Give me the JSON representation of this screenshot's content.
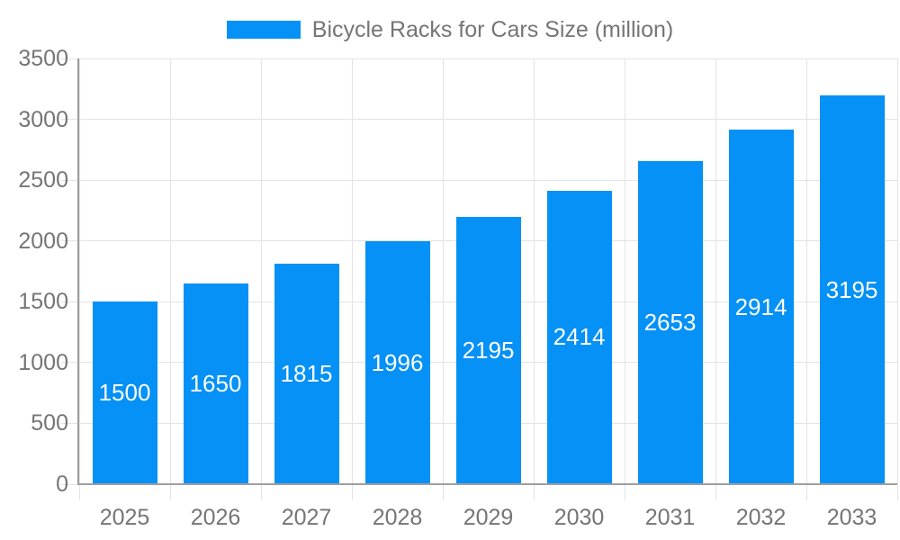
{
  "chart_data": {
    "type": "bar",
    "title": "Bicycle Racks for Cars Size (million)",
    "categories": [
      "2025",
      "2026",
      "2027",
      "2028",
      "2029",
      "2030",
      "2031",
      "2032",
      "2033"
    ],
    "values": [
      1500,
      1650,
      1815,
      1996,
      2195,
      2414,
      2653,
      2914,
      3195
    ],
    "yticks": [
      0,
      500,
      1000,
      1500,
      2000,
      2500,
      3000,
      3500
    ],
    "ylim": [
      0,
      3500
    ],
    "xlabel": "",
    "ylabel": "",
    "grid": true,
    "legend_position": "top-center",
    "bar_labels_inside": true,
    "colors": {
      "bar": "#0591f5",
      "bar_label": "#ffffff",
      "axis_text": "#757575",
      "grid": "#e4e4e4",
      "axis_line": "#9e9e9e",
      "background": "#ffffff"
    }
  }
}
